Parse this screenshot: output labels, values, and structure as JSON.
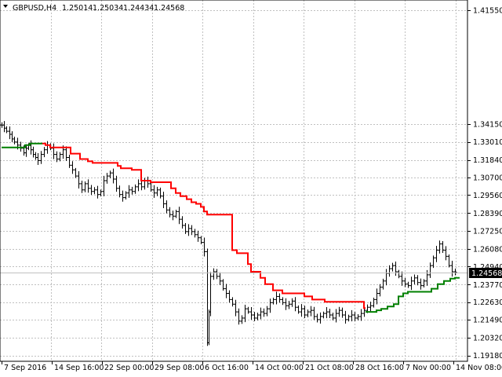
{
  "header": {
    "symbol": "GBPUSD,H4",
    "open": "1.25014",
    "high": "1.25034",
    "low": "1.24434",
    "close": "1.24568"
  },
  "colors": {
    "background": "#ffffff",
    "grid": "#c0c0c0",
    "bars": "#000000",
    "trail_down": "#ff0000",
    "trail_up": "#008000",
    "bid_line": "#c0c0c0",
    "price_tag_bg": "#000000"
  },
  "chart_data": {
    "type": "line",
    "title": "GBPUSD,H4",
    "grid": true,
    "ylim": [
      1.188,
      1.422
    ],
    "y_ticks": [
      "1.41550",
      "1.34150",
      "1.33010",
      "1.31840",
      "1.30700",
      "1.29560",
      "1.28390",
      "1.27250",
      "1.26080",
      "1.24940",
      "1.23770",
      "1.22630",
      "1.21490",
      "1.20320",
      "1.19180"
    ],
    "x_ticks": [
      "7 Sep 2016",
      "14 Sep 16:00",
      "22 Sep 00:00",
      "29 Sep 08:00",
      "6 Oct 16:00",
      "14 Oct 00:00",
      "21 Oct 08:00",
      "28 Oct 16:00",
      "7 Nov 00:00",
      "14 Nov 08:00"
    ],
    "current_price": 1.24568,
    "current_price_label": "1.24568",
    "close_series": {
      "name": "Close",
      "x": [
        0,
        3,
        6,
        10,
        13,
        16,
        20,
        24,
        28,
        31,
        34,
        37,
        40,
        43,
        46,
        50,
        54,
        58,
        62,
        66,
        70,
        74,
        78,
        82,
        86,
        90,
        94,
        98,
        102,
        106,
        110,
        114,
        118,
        122,
        126,
        130,
        134,
        138,
        142,
        146,
        150,
        154,
        158,
        162,
        166,
        170,
        174,
        178,
        182,
        186,
        190,
        194,
        198,
        202,
        206,
        210,
        214,
        218,
        222,
        226,
        230,
        234,
        238,
        242,
        246,
        250,
        254,
        258,
        262,
        264,
        266,
        270,
        274,
        278,
        282,
        286,
        290,
        294,
        298,
        302,
        306,
        310,
        314,
        318,
        322,
        326,
        330,
        334,
        338,
        342,
        346,
        350,
        354,
        358,
        362,
        366,
        370,
        374,
        378,
        382,
        386,
        390,
        394,
        398,
        402,
        406,
        410,
        414,
        418,
        422,
        426,
        430,
        434,
        438,
        442,
        446,
        450,
        454,
        458,
        462,
        466,
        470,
        474,
        478,
        482,
        486,
        490,
        494,
        498,
        502,
        506,
        510,
        514,
        518,
        522,
        526,
        530,
        534,
        538,
        542,
        546,
        550,
        554,
        558,
        562,
        566,
        570,
        574,
        578
      ],
      "values": [
        1.341,
        1.339,
        1.337,
        1.335,
        1.332,
        1.33,
        1.328,
        1.326,
        1.323,
        1.326,
        1.328,
        1.325,
        1.322,
        1.32,
        1.318,
        1.322,
        1.325,
        1.328,
        1.326,
        1.322,
        1.319,
        1.322,
        1.325,
        1.32,
        1.315,
        1.312,
        1.308,
        1.303,
        1.299,
        1.303,
        1.3,
        1.298,
        1.299,
        1.296,
        1.298,
        1.305,
        1.308,
        1.31,
        1.306,
        1.3,
        1.296,
        1.294,
        1.297,
        1.299,
        1.298,
        1.301,
        1.303,
        1.301,
        1.305,
        1.303,
        1.299,
        1.297,
        1.299,
        1.295,
        1.29,
        1.286,
        1.283,
        1.282,
        1.285,
        1.28,
        1.276,
        1.272,
        1.274,
        1.272,
        1.27,
        1.268,
        1.265,
        1.259,
        1.2,
        1.22,
        1.243,
        1.246,
        1.243,
        1.24,
        1.235,
        1.232,
        1.228,
        1.225,
        1.22,
        1.214,
        1.216,
        1.222,
        1.22,
        1.218,
        1.216,
        1.218,
        1.22,
        1.219,
        1.222,
        1.226,
        1.228,
        1.23,
        1.228,
        1.226,
        1.224,
        1.225,
        1.227,
        1.223,
        1.22,
        1.222,
        1.218,
        1.22,
        1.221,
        1.217,
        1.215,
        1.217,
        1.219,
        1.22,
        1.218,
        1.216,
        1.219,
        1.221,
        1.218,
        1.215,
        1.217,
        1.218,
        1.216,
        1.217,
        1.219,
        1.221,
        1.223,
        1.224,
        1.228,
        1.232,
        1.236,
        1.24,
        1.245,
        1.248,
        1.25,
        1.246,
        1.243,
        1.24,
        1.238,
        1.237,
        1.24,
        1.242,
        1.239,
        1.237,
        1.24,
        1.244,
        1.25,
        1.255,
        1.26,
        1.264,
        1.26,
        1.256,
        1.25,
        1.246,
        1.2457
      ]
    },
    "trail_series": [
      {
        "name": "trail-green-1",
        "color": "#008000",
        "x": [
          0,
          30,
          30,
          36,
          36,
          52
        ],
        "values": [
          1.3265,
          1.3265,
          1.328,
          1.328,
          1.329,
          1.329
        ]
      },
      {
        "name": "trail-red",
        "color": "#ff0000",
        "x": [
          52,
          56,
          56,
          62,
          62,
          88,
          88,
          100,
          100,
          110,
          110,
          116,
          116,
          148,
          148,
          152,
          152,
          166,
          166,
          178,
          178,
          190,
          190,
          216,
          216,
          222,
          222,
          228,
          228,
          236,
          236,
          242,
          242,
          248,
          248,
          254,
          254,
          258,
          258,
          262,
          262,
          294,
          294,
          300,
          300,
          314,
          314,
          318,
          318,
          330,
          330,
          336,
          336,
          346,
          346,
          358,
          358,
          386,
          386,
          396,
          396,
          412,
          412,
          462,
          462,
          464
        ],
        "values": [
          1.329,
          1.329,
          1.328,
          1.328,
          1.3265,
          1.3265,
          1.3225,
          1.3225,
          1.319,
          1.319,
          1.3175,
          1.3175,
          1.3165,
          1.3165,
          1.3145,
          1.3145,
          1.313,
          1.313,
          1.312,
          1.312,
          1.305,
          1.305,
          1.304,
          1.304,
          1.3,
          1.3,
          1.297,
          1.297,
          1.295,
          1.295,
          1.293,
          1.293,
          1.291,
          1.291,
          1.29,
          1.29,
          1.288,
          1.288,
          1.285,
          1.285,
          1.283,
          1.283,
          1.26,
          1.26,
          1.258,
          1.258,
          1.251,
          1.251,
          1.246,
          1.246,
          1.242,
          1.242,
          1.238,
          1.238,
          1.234,
          1.234,
          1.232,
          1.232,
          1.23,
          1.23,
          1.228,
          1.228,
          1.2265,
          1.2265,
          1.2225,
          1.2225
        ]
      },
      {
        "name": "trail-green-2",
        "color": "#008000",
        "x": [
          464,
          478,
          478,
          484,
          484,
          492,
          492,
          500,
          500,
          506,
          506,
          512,
          512,
          518,
          518,
          548,
          548,
          556,
          556,
          564,
          564,
          572,
          572,
          578,
          578,
          584
        ],
        "values": [
          1.22,
          1.22,
          1.221,
          1.221,
          1.222,
          1.222,
          1.2235,
          1.2235,
          1.225,
          1.225,
          1.23,
          1.23,
          1.232,
          1.232,
          1.233,
          1.233,
          1.235,
          1.235,
          1.238,
          1.238,
          1.24,
          1.24,
          1.2415,
          1.2415,
          1.242,
          1.242
        ]
      }
    ]
  }
}
